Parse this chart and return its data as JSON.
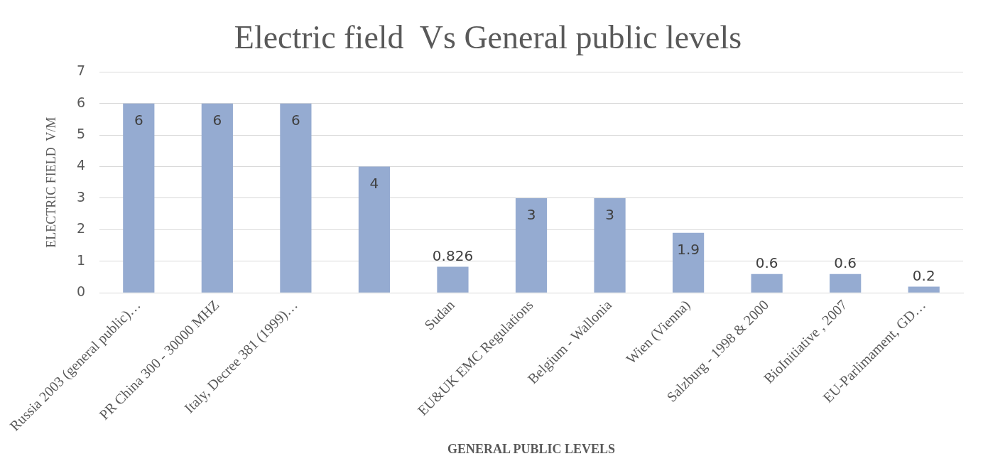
{
  "chart_data": {
    "type": "bar",
    "title": "Electric field  Vs General public levels",
    "xlabel": "GENERAL PUBLIC LEVELS",
    "ylabel": "ELECTRIC FIELD  V/M",
    "categories": [
      "Russia 2003 (general public)…",
      "PR China 300 - 30000 MHZ",
      "Italy, Decree 381 (1999)…",
      null,
      "Sudan",
      "EU&UK EMC Regulations",
      "Belgium - Wallonia",
      "Wien (Vienna)",
      "Salzburg - 1998 & 2000",
      "BioInitiative , 2007",
      "EU-Parlimament, GD…"
    ],
    "values": [
      6,
      6,
      6,
      4,
      0.826,
      3,
      3,
      1.9,
      0.6,
      0.6,
      0.2
    ],
    "value_labels": [
      "6",
      "6",
      "6",
      "4",
      "0.826",
      "3",
      "3",
      "1.9",
      "0.6",
      "0.6",
      "0.2"
    ],
    "color": "#95abd1",
    "ylim": [
      0,
      7
    ],
    "yticks": [
      0,
      1,
      2,
      3,
      4,
      5,
      6,
      7
    ],
    "grid": "y",
    "legend": false
  }
}
